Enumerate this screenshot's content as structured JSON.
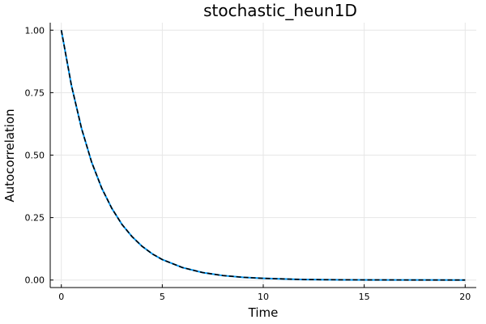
{
  "chart_data": {
    "type": "line",
    "title": "stochastic_heun1D",
    "xlabel": "Time",
    "ylabel": "Autocorrelation",
    "xlim": [
      -0.55,
      20.55
    ],
    "ylim": [
      -0.03,
      1.03
    ],
    "xticks": [
      0,
      5,
      10,
      15,
      20
    ],
    "xtick_labels": [
      "0",
      "5",
      "10",
      "15",
      "20"
    ],
    "yticks": [
      0,
      0.25,
      0.5,
      0.75,
      1.0
    ],
    "ytick_labels": [
      "0.00",
      "0.25",
      "0.50",
      "0.75",
      "1.00"
    ],
    "grid": true,
    "legend": "none",
    "x": [
      0,
      0.5,
      1,
      1.5,
      2,
      2.5,
      3,
      3.5,
      4,
      4.5,
      5,
      6,
      7,
      8,
      9,
      10,
      12,
      14,
      16,
      18,
      20
    ],
    "series": [
      {
        "style": "solid",
        "color": "#009af9",
        "values": [
          1.0,
          0.779,
          0.607,
          0.472,
          0.368,
          0.287,
          0.223,
          0.174,
          0.135,
          0.105,
          0.082,
          0.05,
          0.03,
          0.018,
          0.011,
          0.007,
          0.002,
          0.001,
          0.0005,
          0.0002,
          0.0001
        ]
      },
      {
        "style": "dashed",
        "color": "#000000",
        "values": [
          1.0,
          0.779,
          0.607,
          0.472,
          0.368,
          0.287,
          0.223,
          0.174,
          0.135,
          0.105,
          0.082,
          0.05,
          0.03,
          0.018,
          0.011,
          0.007,
          0.002,
          0.001,
          0.0005,
          0.0002,
          0.0001
        ]
      }
    ]
  }
}
